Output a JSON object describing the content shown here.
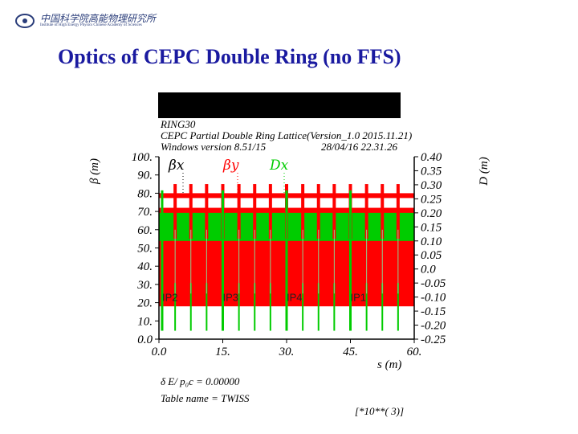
{
  "header": {
    "logo_text": "中国科学院高能物理研究所",
    "logo_subtext": "Institute of High Energy Physics Chinese Academy of Sciences",
    "slide_title": "Optics of CEPC Double Ring (no FFS)"
  },
  "colors": {
    "beta_x": "#000000",
    "beta_y": "#ff0000",
    "dispersion": "#00cc00",
    "title": "#1a1aa0",
    "bar": "#000000"
  },
  "chart_data": {
    "type": "line",
    "header_lines": [
      "RING30",
      "CEPC Partial Double Ring Lattice(Version_1.0  2015.11.21)",
      "Windows version 8.51/15",
      "28/04/16  22.31.26"
    ],
    "xlabel": "s (m)",
    "ylabel_left": "β (m)",
    "ylabel_right": "D (m)",
    "xlim": [
      0,
      60000
    ],
    "ylim_left": [
      0,
      100
    ],
    "ylim_right": [
      -0.25,
      0.4
    ],
    "x_tick_labels": [
      "0.0",
      "15.",
      "30.",
      "45.",
      "60."
    ],
    "y_left_tick_labels": [
      "0.0",
      "10.",
      "20.",
      "30.",
      "40.",
      "50.",
      "60.",
      "70.",
      "80.",
      "90.",
      "100."
    ],
    "y_right_tick_labels": [
      "-0.25",
      "-0.20",
      "-0.15",
      "-0.10",
      "-0.05",
      "0.0",
      "0.05",
      "0.10",
      "0.15",
      "0.20",
      "0.25",
      "0.30",
      "0.35",
      "0.40"
    ],
    "legend": [
      "βx",
      "βy",
      "Dx"
    ],
    "series": [
      {
        "name": "βx",
        "color": "#000000",
        "beta_range": [
          0,
          100
        ],
        "note": ""
      },
      {
        "name": "βy",
        "color": "#ff0000",
        "beta_range": [
          10,
          80
        ]
      },
      {
        "name": "Dx",
        "color": "#00cc00",
        "disp_range": [
          0.1,
          0.2
        ]
      }
    ],
    "ip_labels": [
      {
        "label": "IP2",
        "s": 750
      },
      {
        "label": "IP3",
        "s": 15000
      },
      {
        "label": "IP4",
        "s": 30000
      },
      {
        "label": "IP1",
        "s": 45000
      }
    ],
    "spikes_s": [
      3800,
      7500,
      11200,
      15000,
      18800,
      22500,
      26200,
      30000,
      33800,
      37500,
      41200,
      45000,
      48800,
      52500,
      56200
    ],
    "footer": {
      "delta_line": "δ E/ p₀c  =     0.00000",
      "table_line": "Table name = TWISS",
      "scale_note": "[*10**( 3)]"
    }
  }
}
